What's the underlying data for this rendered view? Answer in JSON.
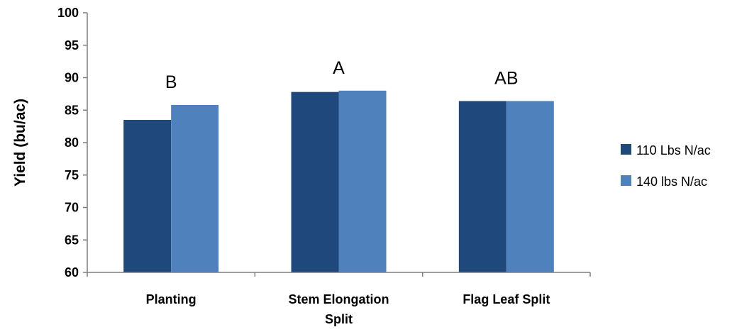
{
  "chart_data": {
    "type": "bar",
    "title": "",
    "xlabel": "",
    "ylabel": "Yield (bu/ac)",
    "ylim": [
      60,
      100
    ],
    "yticks": [
      60,
      65,
      70,
      75,
      80,
      85,
      90,
      95,
      100
    ],
    "grid": false,
    "legend_position": "right",
    "categories": [
      [
        "Planting"
      ],
      [
        "Stem Elongation",
        "Split"
      ],
      [
        "Flag Leaf Split"
      ]
    ],
    "series": [
      {
        "name": "110 Lbs N/ac",
        "color": "#1f497d",
        "values": [
          83.5,
          87.8,
          86.4
        ]
      },
      {
        "name": "140 lbs N/ac",
        "color": "#4f81bd",
        "values": [
          85.8,
          88.0,
          86.4
        ]
      }
    ],
    "annotations": [
      "B",
      "A",
      "AB"
    ]
  }
}
